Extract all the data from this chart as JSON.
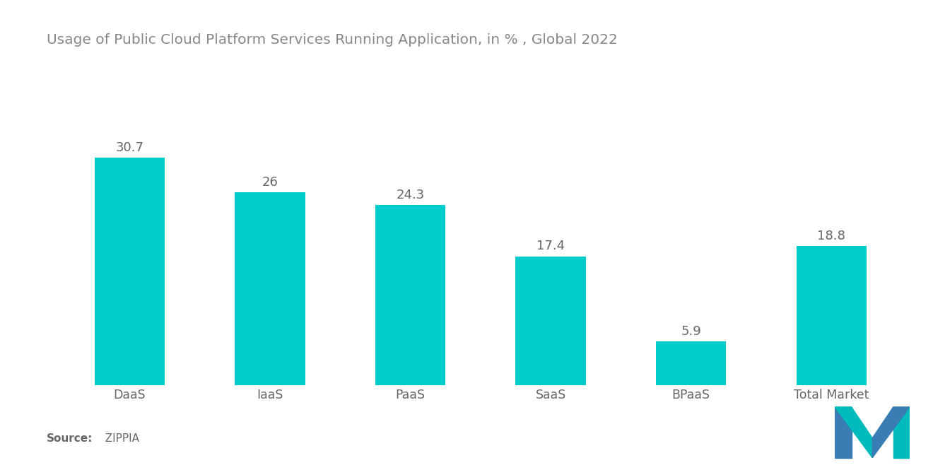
{
  "title": "Usage of Public Cloud Platform Services Running Application, in % , Global 2022",
  "categories": [
    "DaaS",
    "IaaS",
    "PaaS",
    "SaaS",
    "BPaaS",
    "Total Market"
  ],
  "values": [
    30.7,
    26.0,
    24.3,
    17.4,
    5.9,
    18.8
  ],
  "bar_color": "#00CCCC",
  "label_color": "#666666",
  "title_color": "#888888",
  "source_bold": "Source:",
  "source_normal": "  ZIPPIA",
  "background_color": "#ffffff",
  "bar_width": 0.5,
  "ylim": [
    0,
    38
  ],
  "title_fontsize": 14.5,
  "label_fontsize": 12.5,
  "value_fontsize": 13,
  "source_fontsize": 11
}
